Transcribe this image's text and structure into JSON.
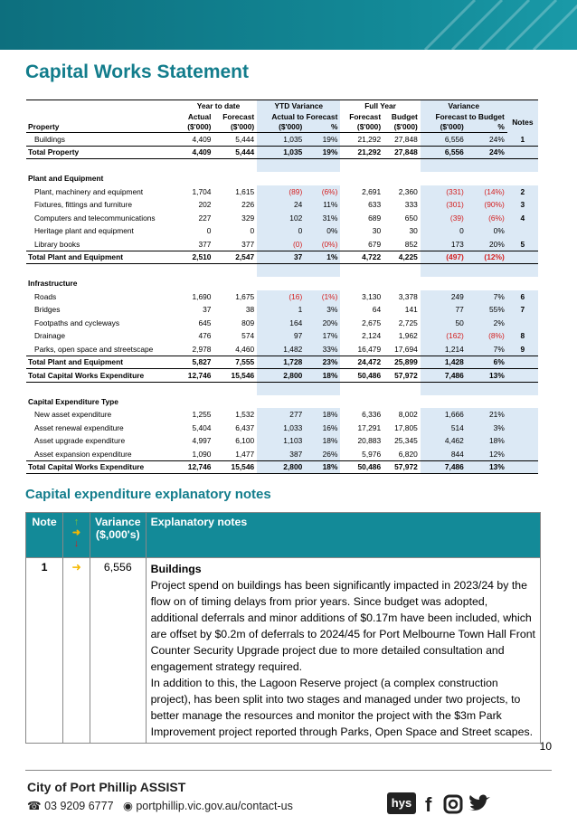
{
  "title": "Capital Works Statement",
  "table": {
    "header": {
      "groups": [
        "Year to date",
        "YTD Variance",
        "Full Year",
        "Variance"
      ],
      "row2": [
        "Actual",
        "Forecast",
        "Actual to Forecast",
        "Forecast",
        "Budget",
        "Forecast to Budget",
        "Notes"
      ],
      "row3": [
        "Property",
        "($'000)",
        "($'000)",
        "($'000)",
        "%",
        "($'000)",
        "($'000)",
        "($'000)",
        "%"
      ]
    },
    "sections": [
      {
        "rows": [
          [
            "Buildings",
            "4,409",
            "5,444",
            "1,035",
            "19%",
            "21,292",
            "27,848",
            "6,556",
            "24%",
            "1"
          ]
        ],
        "totals": [
          [
            "Total Property",
            "4,409",
            "5,444",
            "1,035",
            "19%",
            "21,292",
            "27,848",
            "6,556",
            "24%"
          ]
        ]
      },
      {
        "title": "Plant and Equipment",
        "rows": [
          [
            "Plant, machinery and equipment",
            "1,704",
            "1,615",
            "(89)",
            "(6%)",
            "2,691",
            "2,360",
            "(331)",
            "(14%)",
            "2"
          ],
          [
            "Fixtures, fittings and furniture",
            "202",
            "226",
            "24",
            "11%",
            "633",
            "333",
            "(301)",
            "(90%)",
            "3"
          ],
          [
            "Computers and telecommunications",
            "227",
            "329",
            "102",
            "31%",
            "689",
            "650",
            "(39)",
            "(6%)",
            "4"
          ],
          [
            "Heritage plant and equipment",
            "0",
            "0",
            "0",
            "0%",
            "30",
            "30",
            "0",
            "0%"
          ],
          [
            "Library books",
            "377",
            "377",
            "(0)",
            "(0%)",
            "679",
            "852",
            "173",
            "20%",
            "5"
          ]
        ],
        "totals": [
          [
            "Total Plant and Equipment",
            "2,510",
            "2,547",
            "37",
            "1%",
            "4,722",
            "4,225",
            "(497)",
            "(12%)"
          ]
        ]
      },
      {
        "title": "Infrastructure",
        "rows": [
          [
            "Roads",
            "1,690",
            "1,675",
            "(16)",
            "(1%)",
            "3,130",
            "3,378",
            "249",
            "7%",
            "6"
          ],
          [
            "Bridges",
            "37",
            "38",
            "1",
            "3%",
            "64",
            "141",
            "77",
            "55%",
            "7"
          ],
          [
            "Footpaths and cycleways",
            "645",
            "809",
            "164",
            "20%",
            "2,675",
            "2,725",
            "50",
            "2%"
          ],
          [
            "Drainage",
            "476",
            "574",
            "97",
            "17%",
            "2,124",
            "1,962",
            "(162)",
            "(8%)",
            "8"
          ],
          [
            "Parks, open space and streetscape",
            "2,978",
            "4,460",
            "1,482",
            "33%",
            "16,479",
            "17,694",
            "1,214",
            "7%",
            "9"
          ]
        ],
        "totals": [
          [
            "Total Plant and Equipment",
            "5,827",
            "7,555",
            "1,728",
            "23%",
            "24,472",
            "25,899",
            "1,428",
            "6%"
          ],
          [
            "Total Capital Works Expenditure",
            "12,746",
            "15,546",
            "2,800",
            "18%",
            "50,486",
            "57,972",
            "7,486",
            "13%"
          ]
        ]
      },
      {
        "title": "Capital Expenditure Type",
        "rows": [
          [
            "New asset expenditure",
            "1,255",
            "1,532",
            "277",
            "18%",
            "6,336",
            "8,002",
            "1,666",
            "21%"
          ],
          [
            "Asset renewal expenditure",
            "5,404",
            "6,437",
            "1,033",
            "16%",
            "17,291",
            "17,805",
            "514",
            "3%"
          ],
          [
            "Asset upgrade expenditure",
            "4,997",
            "6,100",
            "1,103",
            "18%",
            "20,883",
            "25,345",
            "4,462",
            "18%"
          ],
          [
            "Asset expansion expenditure",
            "1,090",
            "1,477",
            "387",
            "26%",
            "5,976",
            "6,820",
            "844",
            "12%"
          ]
        ],
        "totals": [
          [
            "Total Capital Works Expenditure",
            "12,746",
            "15,546",
            "2,800",
            "18%",
            "50,486",
            "57,972",
            "7,486",
            "13%"
          ]
        ]
      }
    ]
  },
  "notes": {
    "title": "Capital expenditure explanatory notes",
    "header": [
      "Note",
      "Variance ($,000's)",
      "Explanatory notes"
    ],
    "rows": [
      {
        "note": "1",
        "variance": "6,556",
        "heading": "Buildings",
        "paragraphs": [
          "Project spend on buildings has been significantly impacted in 2023/24 by the flow on of timing delays from prior years. Since budget was adopted, additional deferrals and minor additions of $0.17m have been included, which are offset by $0.2m of deferrals to 2024/45 for Port Melbourne Town Hall Front Counter Security Upgrade project due to more detailed consultation and engagement strategy required.",
          "In addition to this, the Lagoon Reserve project (a complex construction project), has been split into two stages and managed under two projects, to better manage the resources and monitor the project with the $3m Park Improvement project reported through Parks, Open Space and Street scapes."
        ]
      }
    ]
  },
  "page_number": "10",
  "footer": {
    "org": "City of Port Phillip ASSIST",
    "phone": "03 9209 6777",
    "url": "portphillip.vic.gov.au/contact-us",
    "badge": "hys"
  }
}
